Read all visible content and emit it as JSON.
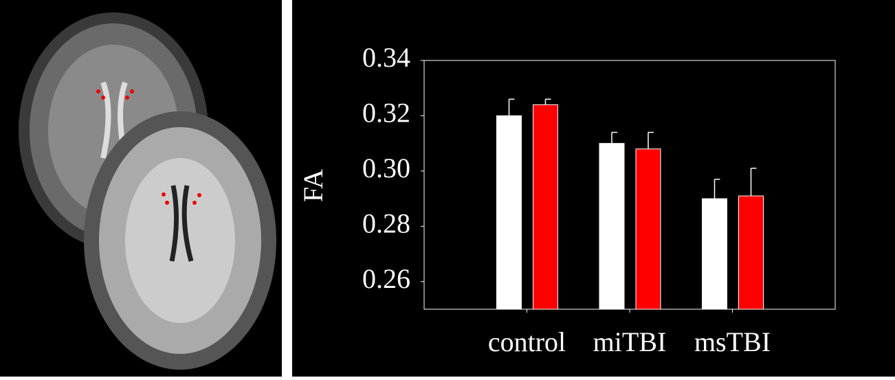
{
  "chart_data": {
    "type": "bar",
    "y_label": "FA",
    "categories": [
      "control",
      "miTBI",
      "msTBI"
    ],
    "series": [
      {
        "color": "#ffffff",
        "values": [
          0.32,
          0.31,
          0.29
        ],
        "errors": [
          0.006,
          0.004,
          0.007
        ]
      },
      {
        "color": "#ff0000",
        "values": [
          0.324,
          0.308,
          0.291
        ],
        "errors": [
          0.002,
          0.006,
          0.01
        ]
      }
    ],
    "ylim": [
      0.25,
      0.34
    ],
    "yticks": [
      {
        "value": 0.26,
        "label": "0.26"
      },
      {
        "value": 0.28,
        "label": "0.28"
      },
      {
        "value": 0.3,
        "label": "0.30"
      },
      {
        "value": 0.32,
        "label": "0.32"
      },
      {
        "value": 0.34,
        "label": "0.34"
      }
    ]
  }
}
